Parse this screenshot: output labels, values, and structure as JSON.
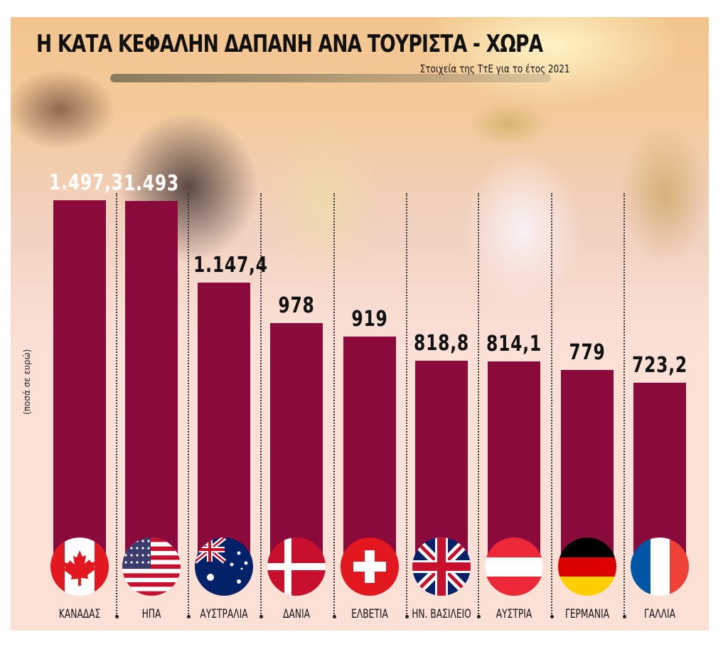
{
  "header": {
    "title": "Η ΚΑΤΑ ΚΕΦΑΛΗΝ ΔΑΠΑΝΗ ΑΝΑ ΤΟΥΡΙΣΤΑ - ΧΩΡΑ",
    "subtitle": "Στοιχεία της ΤτΕ για το έτος 2021"
  },
  "axis": {
    "ylabel": "(ποσά σε ευρώ)"
  },
  "colors": {
    "bar": "#8a0a3b",
    "background": "#fbe0d6"
  },
  "bars": [
    {
      "country": "ΚΑΝΑΔΑΣ",
      "value_label": "1.497,3",
      "flag": "canada-flag-icon"
    },
    {
      "country": "ΗΠΑ",
      "value_label": "1.493",
      "flag": "usa-flag-icon"
    },
    {
      "country": "ΑΥΣΤΡΑΛΙΑ",
      "value_label": "1.147,4",
      "flag": "australia-flag-icon"
    },
    {
      "country": "ΔΑΝΙΑ",
      "value_label": "978",
      "flag": "denmark-flag-icon"
    },
    {
      "country": "ΕΛΒΕΤΙΑ",
      "value_label": "919",
      "flag": "switzerland-flag-icon"
    },
    {
      "country": "ΗΝ. ΒΑΣΙΛΕΙΟ",
      "value_label": "818,8",
      "flag": "uk-flag-icon"
    },
    {
      "country": "ΑΥΣΤΡΙΑ",
      "value_label": "814,1",
      "flag": "austria-flag-icon"
    },
    {
      "country": "ΓΕΡΜΑΝΙΑ",
      "value_label": "779",
      "flag": "germany-flag-icon"
    },
    {
      "country": "ΓΑΛΛΙΑ",
      "value_label": "723,2",
      "flag": "france-flag-icon"
    }
  ],
  "chart_data": {
    "type": "bar",
    "title": "Η ΚΑΤΑ ΚΕΦΑΛΗΝ ΔΑΠΑΝΗ ΑΝΑ ΤΟΥΡΙΣΤΑ - ΧΩΡΑ",
    "subtitle": "Στοιχεία της ΤτΕ για το έτος 2021",
    "categories": [
      "ΚΑΝΑΔΑΣ",
      "ΗΠΑ",
      "ΑΥΣΤΡΑΛΙΑ",
      "ΔΑΝΙΑ",
      "ΕΛΒΕΤΙΑ",
      "ΗΝ. ΒΑΣΙΛΕΙΟ",
      "ΑΥΣΤΡΙΑ",
      "ΓΕΡΜΑΝΙΑ",
      "ΓΑΛΛΙΑ"
    ],
    "values": [
      1497.3,
      1493,
      1147.4,
      978,
      919,
      818.8,
      814.1,
      779,
      723.2
    ],
    "value_labels": [
      "1.497,3",
      "1.493",
      "1.147,4",
      "978",
      "919",
      "818,8",
      "814,1",
      "779",
      "723,2"
    ],
    "xlabel": "",
    "ylabel": "(ποσά σε ευρώ)",
    "grid": false,
    "legend": null,
    "bar_color": "#8a0a3b"
  }
}
